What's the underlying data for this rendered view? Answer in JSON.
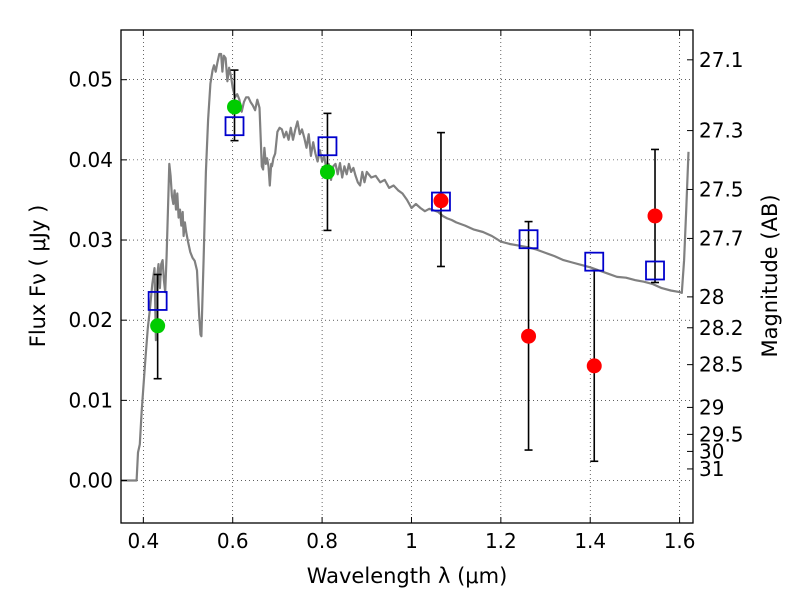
{
  "chart_data": {
    "type": "scatter",
    "xlabel": "Wavelength  λ (μm)",
    "ylabel": "Flux  Fν  ( μJy )",
    "ylabel_right": "Magnitude (AB)",
    "xlim": [
      0.35,
      1.63
    ],
    "ylim": [
      -0.0053,
      0.0562
    ],
    "grid": true,
    "x_ticks": [
      0.4,
      0.6,
      0.8,
      1.0,
      1.2,
      1.4,
      1.6
    ],
    "x_tick_labels": [
      "0.4",
      "0.6",
      "0.8",
      "1",
      "1.2",
      "1.4",
      "1.6"
    ],
    "y_ticks": [
      0.0,
      0.01,
      0.02,
      0.03,
      0.04,
      0.05
    ],
    "y_tick_labels": [
      "0.00",
      "0.01",
      "0.02",
      "0.03",
      "0.04",
      "0.05"
    ],
    "mag_ticks": [
      27.1,
      27.3,
      27.5,
      27.7,
      28,
      28.2,
      28.5,
      29,
      29.5,
      30,
      31
    ],
    "mag_tick_labels": [
      "27.1",
      "27.3",
      "27.5",
      "27.7",
      "28",
      "28.2",
      "28.5",
      "29",
      "29.5",
      "30",
      "31"
    ],
    "series": [
      {
        "name": "model-spectrum",
        "kind": "line",
        "color": "#808080",
        "points": [
          [
            0.35,
            0.0
          ],
          [
            0.385,
            0.0
          ],
          [
            0.388,
            0.0035
          ],
          [
            0.392,
            0.0045
          ],
          [
            0.396,
            0.0085
          ],
          [
            0.4,
            0.0115
          ],
          [
            0.405,
            0.0155
          ],
          [
            0.41,
            0.019
          ],
          [
            0.415,
            0.0215
          ],
          [
            0.42,
            0.0245
          ],
          [
            0.425,
            0.0265
          ],
          [
            0.428,
            0.0175
          ],
          [
            0.431,
            0.0255
          ],
          [
            0.434,
            0.027
          ],
          [
            0.437,
            0.024
          ],
          [
            0.44,
            0.027
          ],
          [
            0.443,
            0.0275
          ],
          [
            0.446,
            0.025
          ],
          [
            0.449,
            0.0235
          ],
          [
            0.452,
            0.028
          ],
          [
            0.455,
            0.0335
          ],
          [
            0.458,
            0.0395
          ],
          [
            0.461,
            0.038
          ],
          [
            0.464,
            0.0355
          ],
          [
            0.467,
            0.0345
          ],
          [
            0.47,
            0.0362
          ],
          [
            0.473,
            0.0338
          ],
          [
            0.476,
            0.0358
          ],
          [
            0.479,
            0.0328
          ],
          [
            0.482,
            0.0338
          ],
          [
            0.485,
            0.0318
          ],
          [
            0.488,
            0.0335
          ],
          [
            0.49,
            0.0305
          ],
          [
            0.493,
            0.0322
          ],
          [
            0.496,
            0.031
          ],
          [
            0.5,
            0.0298
          ],
          [
            0.505,
            0.0285
          ],
          [
            0.51,
            0.0278
          ],
          [
            0.515,
            0.0274
          ],
          [
            0.52,
            0.0262
          ],
          [
            0.525,
            0.0205
          ],
          [
            0.528,
            0.0182
          ],
          [
            0.53,
            0.018
          ],
          [
            0.535,
            0.028
          ],
          [
            0.54,
            0.0385
          ],
          [
            0.545,
            0.045
          ],
          [
            0.55,
            0.0495
          ],
          [
            0.555,
            0.0512
          ],
          [
            0.558,
            0.0518
          ],
          [
            0.562,
            0.051
          ],
          [
            0.566,
            0.0522
          ],
          [
            0.57,
            0.0532
          ],
          [
            0.574,
            0.0532
          ],
          [
            0.577,
            0.051
          ],
          [
            0.58,
            0.053
          ],
          [
            0.584,
            0.0527
          ],
          [
            0.588,
            0.0498
          ],
          [
            0.592,
            0.0515
          ],
          [
            0.596,
            0.0505
          ],
          [
            0.6,
            0.049
          ],
          [
            0.605,
            0.0478
          ],
          [
            0.61,
            0.0482
          ],
          [
            0.615,
            0.0475
          ],
          [
            0.62,
            0.046
          ],
          [
            0.625,
            0.0472
          ],
          [
            0.63,
            0.0478
          ],
          [
            0.635,
            0.0478
          ],
          [
            0.64,
            0.0472
          ],
          [
            0.645,
            0.0468
          ],
          [
            0.65,
            0.0462
          ],
          [
            0.655,
            0.0475
          ],
          [
            0.66,
            0.0465
          ],
          [
            0.665,
            0.0392
          ],
          [
            0.668,
            0.0388
          ],
          [
            0.671,
            0.0415
          ],
          [
            0.674,
            0.0395
          ],
          [
            0.677,
            0.0402
          ],
          [
            0.68,
            0.0392
          ],
          [
            0.683,
            0.0368
          ],
          [
            0.686,
            0.0395
          ],
          [
            0.688,
            0.0392
          ],
          [
            0.691,
            0.0402
          ],
          [
            0.695,
            0.0408
          ],
          [
            0.7,
            0.0435
          ],
          [
            0.705,
            0.044
          ],
          [
            0.71,
            0.0438
          ],
          [
            0.715,
            0.0428
          ],
          [
            0.72,
            0.0435
          ],
          [
            0.725,
            0.0425
          ],
          [
            0.73,
            0.044
          ],
          [
            0.735,
            0.0425
          ],
          [
            0.74,
            0.0438
          ],
          [
            0.745,
            0.0448
          ],
          [
            0.75,
            0.0432
          ],
          [
            0.755,
            0.0438
          ],
          [
            0.76,
            0.0428
          ],
          [
            0.765,
            0.0415
          ],
          [
            0.77,
            0.0432
          ],
          [
            0.775,
            0.0405
          ],
          [
            0.78,
            0.0422
          ],
          [
            0.785,
            0.0408
          ],
          [
            0.79,
            0.0398
          ],
          [
            0.795,
            0.0412
          ],
          [
            0.8,
            0.0398
          ],
          [
            0.805,
            0.0405
          ],
          [
            0.81,
            0.0385
          ],
          [
            0.815,
            0.0395
          ],
          [
            0.82,
            0.0375
          ],
          [
            0.825,
            0.0392
          ],
          [
            0.83,
            0.0395
          ],
          [
            0.835,
            0.0382
          ],
          [
            0.84,
            0.0396
          ],
          [
            0.845,
            0.0378
          ],
          [
            0.85,
            0.0392
          ],
          [
            0.855,
            0.0382
          ],
          [
            0.86,
            0.0395
          ],
          [
            0.865,
            0.0385
          ],
          [
            0.87,
            0.039
          ],
          [
            0.875,
            0.038
          ],
          [
            0.88,
            0.0372
          ],
          [
            0.885,
            0.0368
          ],
          [
            0.89,
            0.0385
          ],
          [
            0.895,
            0.0372
          ],
          [
            0.9,
            0.0385
          ],
          [
            0.91,
            0.0378
          ],
          [
            0.92,
            0.038
          ],
          [
            0.93,
            0.0372
          ],
          [
            0.94,
            0.0375
          ],
          [
            0.95,
            0.0365
          ],
          [
            0.96,
            0.0368
          ],
          [
            0.97,
            0.0362
          ],
          [
            0.98,
            0.0358
          ],
          [
            0.99,
            0.035
          ],
          [
            1.0,
            0.034
          ],
          [
            1.01,
            0.0345
          ],
          [
            1.02,
            0.034
          ],
          [
            1.03,
            0.0336
          ],
          [
            1.04,
            0.0339
          ],
          [
            1.05,
            0.0337
          ],
          [
            1.06,
            0.0335
          ],
          [
            1.07,
            0.033
          ],
          [
            1.08,
            0.0327
          ],
          [
            1.09,
            0.0325
          ],
          [
            1.1,
            0.0322
          ],
          [
            1.12,
            0.0318
          ],
          [
            1.14,
            0.0313
          ],
          [
            1.16,
            0.031
          ],
          [
            1.18,
            0.0305
          ],
          [
            1.2,
            0.0298
          ],
          [
            1.22,
            0.0295
          ],
          [
            1.24,
            0.0293
          ],
          [
            1.26,
            0.0291
          ],
          [
            1.28,
            0.0288
          ],
          [
            1.3,
            0.0284
          ],
          [
            1.32,
            0.028
          ],
          [
            1.34,
            0.0275
          ],
          [
            1.36,
            0.0272
          ],
          [
            1.38,
            0.0269
          ],
          [
            1.4,
            0.0266
          ],
          [
            1.42,
            0.0262
          ],
          [
            1.44,
            0.0258
          ],
          [
            1.46,
            0.0254
          ],
          [
            1.48,
            0.0253
          ],
          [
            1.5,
            0.025
          ],
          [
            1.52,
            0.0248
          ],
          [
            1.54,
            0.0245
          ],
          [
            1.56,
            0.024
          ],
          [
            1.58,
            0.0237
          ],
          [
            1.6,
            0.0235
          ],
          [
            1.605,
            0.0234
          ],
          [
            1.61,
            0.0275
          ],
          [
            1.615,
            0.034
          ],
          [
            1.62,
            0.041
          ]
        ]
      },
      {
        "name": "model-photometry",
        "kind": "open-square",
        "color": "#0000cc",
        "points": [
          [
            0.432,
            0.0224
          ],
          [
            0.604,
            0.0442
          ],
          [
            0.812,
            0.0417
          ],
          [
            1.066,
            0.0348
          ],
          [
            1.262,
            0.0301
          ],
          [
            1.409,
            0.0273
          ],
          [
            1.545,
            0.0262
          ]
        ]
      },
      {
        "name": "observed-green",
        "kind": "filled-circle",
        "color": "#00cc00",
        "points": [
          [
            0.432,
            0.0193
          ],
          [
            0.604,
            0.0466
          ],
          [
            0.812,
            0.0385
          ]
        ]
      },
      {
        "name": "observed-red",
        "kind": "filled-circle",
        "color": "#ff0000",
        "points": [
          [
            1.066,
            0.0349
          ],
          [
            1.262,
            0.018
          ],
          [
            1.409,
            0.0143
          ],
          [
            1.545,
            0.033
          ]
        ]
      },
      {
        "name": "error-bars",
        "kind": "errorbar",
        "color": "#000000",
        "bars": [
          [
            0.432,
            0.0127,
            0.0257
          ],
          [
            0.604,
            0.0424,
            0.0512
          ],
          [
            0.812,
            0.0312,
            0.0458
          ],
          [
            1.066,
            0.0267,
            0.0434
          ],
          [
            1.262,
            0.0038,
            0.0323
          ],
          [
            1.409,
            0.0024,
            0.0262
          ],
          [
            1.545,
            0.0247,
            0.0413
          ]
        ]
      }
    ]
  }
}
